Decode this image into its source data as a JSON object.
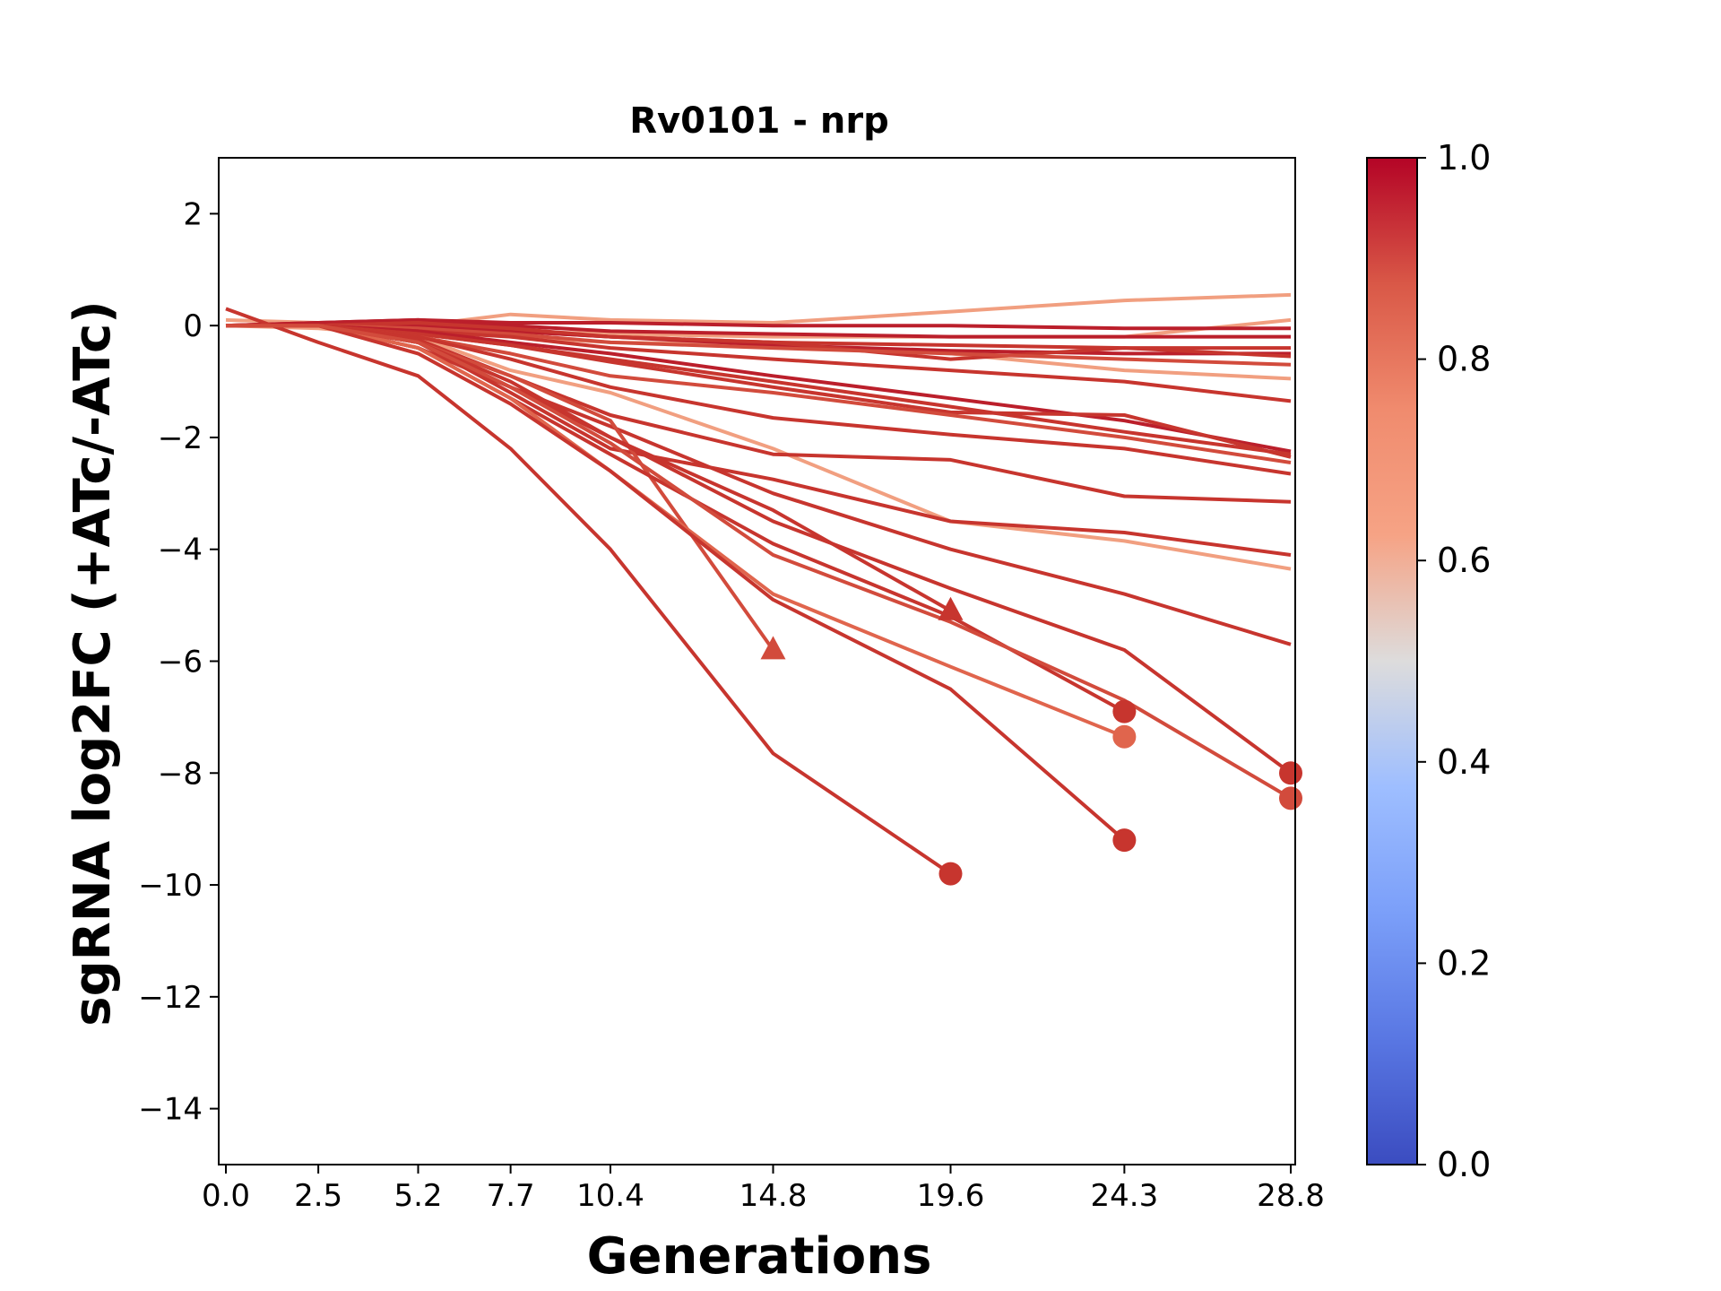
{
  "chart_data": {
    "type": "line",
    "title": "Rv0101 - nrp",
    "xlabel": "Generations",
    "ylabel": "sgRNA log2FC (+ATc/-ATc)",
    "x_ticks": [
      0.0,
      2.5,
      5.2,
      7.7,
      10.4,
      14.8,
      19.6,
      24.3,
      28.8
    ],
    "x_tick_labels": [
      "0.0",
      "2.5",
      "5.2",
      "7.7",
      "10.4",
      "14.8",
      "19.6",
      "24.3",
      "28.8"
    ],
    "xlim": [
      -0.2,
      29.0
    ],
    "y_ticks": [
      2,
      0,
      -2,
      -4,
      -6,
      -8,
      -10,
      -12,
      -14
    ],
    "y_tick_labels": [
      "2",
      "0",
      "−2",
      "−4",
      "−6",
      "−8",
      "−10",
      "−12",
      "−14"
    ],
    "ylim": [
      -15,
      3
    ],
    "grid": false,
    "colorbar": {
      "colormap": "coolwarm",
      "range": [
        0.0,
        1.0
      ],
      "ticks": [
        0.0,
        0.2,
        0.4,
        0.6,
        0.8,
        1.0
      ],
      "tick_labels": [
        "0.0",
        "0.2",
        "0.4",
        "0.6",
        "0.8",
        "1.0"
      ]
    },
    "series": [
      {
        "color": "#f19f80",
        "x": [
          0.0,
          2.5,
          5.2,
          7.7,
          10.4,
          14.8,
          19.6,
          24.3,
          28.8
        ],
        "y": [
          0.0,
          0.05,
          0.0,
          0.2,
          0.1,
          0.05,
          0.25,
          0.45,
          0.55
        ]
      },
      {
        "color": "#f19f80",
        "x": [
          0.0,
          2.5,
          5.2,
          7.7,
          10.4,
          14.8,
          19.6,
          24.3,
          28.8
        ],
        "y": [
          0.1,
          0.05,
          0.0,
          -0.1,
          -0.15,
          -0.2,
          -0.2,
          -0.2,
          0.1
        ]
      },
      {
        "color": "#f19f80",
        "x": [
          0.0,
          2.5,
          5.2,
          7.7,
          10.4,
          14.8,
          19.6,
          24.3,
          28.8
        ],
        "y": [
          0.0,
          0.0,
          -0.1,
          -0.2,
          -0.3,
          -0.35,
          -0.5,
          -0.8,
          -0.95
        ]
      },
      {
        "color": "#f19f80",
        "x": [
          0.0,
          2.5,
          5.2,
          7.7,
          10.4,
          14.8,
          19.6,
          24.3,
          28.8
        ],
        "y": [
          0.0,
          -0.05,
          -0.2,
          -0.8,
          -1.2,
          -2.2,
          -3.5,
          -3.85,
          -4.35
        ]
      },
      {
        "color": "#bb1f2b",
        "x": [
          0.0,
          2.5,
          5.2,
          7.7,
          10.4,
          14.8,
          19.6,
          24.3,
          28.8
        ],
        "y": [
          0.0,
          0.05,
          0.1,
          0.05,
          0.05,
          0.0,
          0.0,
          -0.05,
          -0.05
        ]
      },
      {
        "color": "#bb1f2b",
        "x": [
          0.0,
          2.5,
          5.2,
          7.7,
          10.4,
          14.8,
          19.6,
          24.3,
          28.8
        ],
        "y": [
          0.0,
          0.05,
          0.1,
          0.0,
          -0.1,
          -0.15,
          -0.2,
          -0.2,
          -0.2
        ]
      },
      {
        "color": "#c7352e",
        "x": [
          0.0,
          2.5,
          5.2,
          7.7,
          10.4,
          14.8,
          19.6,
          24.3,
          28.8
        ],
        "y": [
          0.0,
          0.0,
          0.05,
          -0.1,
          -0.2,
          -0.3,
          -0.35,
          -0.4,
          -0.4
        ]
      },
      {
        "color": "#bb1f2b",
        "x": [
          0.0,
          2.5,
          5.2,
          7.7,
          10.4,
          14.8,
          19.6,
          24.3,
          28.8
        ],
        "y": [
          0.0,
          0.0,
          0.0,
          -0.1,
          -0.2,
          -0.35,
          -0.45,
          -0.5,
          -0.5
        ]
      },
      {
        "color": "#c7352e",
        "x": [
          0.0,
          2.5,
          5.2,
          7.7,
          10.4,
          14.8,
          19.6,
          24.3,
          28.8
        ],
        "y": [
          0.0,
          0.0,
          0.05,
          -0.05,
          -0.2,
          -0.3,
          -0.6,
          -0.4,
          -0.55
        ]
      },
      {
        "color": "#d24b3c",
        "x": [
          0.0,
          2.5,
          5.2,
          7.7,
          10.4,
          14.8,
          19.6,
          24.3,
          28.8
        ],
        "y": [
          0.0,
          0.0,
          -0.05,
          -0.15,
          -0.3,
          -0.4,
          -0.5,
          -0.6,
          -0.7
        ]
      },
      {
        "color": "#c7352e",
        "x": [
          0.0,
          2.5,
          5.2,
          7.7,
          10.4,
          14.8,
          19.6,
          24.3,
          28.8
        ],
        "y": [
          0.0,
          0.0,
          -0.1,
          -0.2,
          -0.4,
          -0.6,
          -0.8,
          -1.0,
          -1.35
        ]
      },
      {
        "color": "#bb1f2b",
        "x": [
          0.0,
          2.5,
          5.2,
          7.7,
          10.4,
          14.8,
          19.6,
          24.3,
          28.8
        ],
        "y": [
          0.0,
          0.0,
          -0.1,
          -0.3,
          -0.5,
          -0.9,
          -1.3,
          -1.7,
          -2.25
        ]
      },
      {
        "color": "#c7352e",
        "x": [
          0.0,
          2.5,
          5.2,
          7.7,
          10.4,
          14.8,
          19.6,
          24.3,
          28.8
        ],
        "y": [
          0.0,
          0.0,
          -0.15,
          -0.35,
          -0.6,
          -1.0,
          -1.45,
          -1.9,
          -2.3
        ]
      },
      {
        "color": "#c7352e",
        "x": [
          0.0,
          2.5,
          5.2,
          7.7,
          10.4,
          14.8,
          19.6,
          24.3,
          28.8
        ],
        "y": [
          0.0,
          0.0,
          -0.15,
          -0.35,
          -0.65,
          -1.1,
          -1.55,
          -1.6,
          -2.35
        ]
      },
      {
        "color": "#d24b3c",
        "x": [
          0.0,
          2.5,
          5.2,
          7.7,
          10.4,
          14.8,
          19.6,
          24.3,
          28.8
        ],
        "y": [
          0.0,
          0.0,
          -0.2,
          -0.5,
          -0.9,
          -1.2,
          -1.6,
          -2.0,
          -2.45
        ]
      },
      {
        "color": "#c7352e",
        "x": [
          0.0,
          2.5,
          5.2,
          7.7,
          10.4,
          14.8,
          19.6,
          24.3,
          28.8
        ],
        "y": [
          0.0,
          0.0,
          -0.2,
          -0.6,
          -1.1,
          -1.65,
          -1.95,
          -2.2,
          -2.65
        ]
      },
      {
        "color": "#c7352e",
        "x": [
          0.0,
          2.5,
          5.2,
          7.7,
          10.4,
          14.8,
          19.6,
          24.3,
          28.8
        ],
        "y": [
          0.0,
          0.0,
          -0.25,
          -0.9,
          -1.6,
          -2.3,
          -2.4,
          -3.05,
          -3.15
        ]
      },
      {
        "color": "#c7352e",
        "x": [
          0.0,
          2.5,
          5.2,
          7.7,
          10.4,
          14.8,
          19.6,
          24.3,
          28.8
        ],
        "y": [
          0.0,
          0.0,
          -0.3,
          -1.2,
          -2.2,
          -2.75,
          -3.5,
          -3.7,
          -4.1
        ]
      },
      {
        "color": "#c7352e",
        "x": [
          0.0,
          2.5,
          5.2,
          7.7,
          10.4,
          14.8,
          19.6,
          24.3,
          28.8
        ],
        "y": [
          0.0,
          0.0,
          -0.3,
          -1.1,
          -1.8,
          -3.0,
          -4.0,
          -4.8,
          -5.7
        ]
      },
      {
        "color": "#d24b3c",
        "x": [
          0.0,
          2.5,
          5.2,
          7.7,
          10.4,
          14.8
        ],
        "y": [
          0.0,
          0.0,
          -0.3,
          -0.9,
          -1.7,
          -5.8
        ],
        "marker": "triangle"
      },
      {
        "color": "#c7352e",
        "x": [
          0.0,
          2.5,
          5.2,
          7.7,
          10.4,
          14.8,
          19.6
        ],
        "y": [
          0.0,
          0.0,
          -0.4,
          -1.1,
          -2.0,
          -3.3,
          -5.1
        ],
        "marker": "triangle"
      },
      {
        "color": "#c7352e",
        "x": [
          0.0,
          2.5,
          5.2,
          7.7,
          10.4,
          14.8,
          19.6,
          24.3
        ],
        "y": [
          0.0,
          0.0,
          -0.4,
          -1.3,
          -2.3,
          -3.9,
          -5.2,
          -6.9
        ],
        "marker": "circle"
      },
      {
        "color": "#e0654d",
        "x": [
          0.0,
          2.5,
          5.2,
          7.7,
          10.4,
          14.8,
          19.6,
          24.3
        ],
        "y": [
          0.0,
          0.0,
          -0.4,
          -1.3,
          -2.6,
          -4.8,
          -6.1,
          -7.35
        ],
        "marker": "circle"
      },
      {
        "color": "#c7352e",
        "x": [
          0.0,
          2.5,
          5.2,
          7.7,
          10.4,
          14.8,
          19.6,
          24.3
        ],
        "y": [
          0.0,
          0.0,
          -0.5,
          -1.4,
          -2.6,
          -4.9,
          -6.5,
          -9.2
        ],
        "marker": "circle"
      },
      {
        "color": "#c7352e",
        "x": [
          0.0,
          2.5,
          5.2,
          7.7,
          10.4,
          14.8,
          19.6
        ],
        "y": [
          0.3,
          -0.3,
          -0.9,
          -2.2,
          -4.0,
          -7.65,
          -9.8
        ],
        "marker": "circle"
      },
      {
        "color": "#c7352e",
        "x": [
          0.0,
          2.5,
          5.2,
          7.7,
          10.4,
          14.8,
          19.6,
          24.3,
          28.8
        ],
        "y": [
          0.0,
          0.0,
          -0.3,
          -1.0,
          -2.0,
          -3.5,
          -4.7,
          -5.8,
          -8.0
        ],
        "marker": "circle"
      },
      {
        "color": "#d24b3c",
        "x": [
          0.0,
          2.5,
          5.2,
          7.7,
          10.4,
          14.8,
          19.6,
          24.3,
          28.8
        ],
        "y": [
          0.0,
          0.0,
          -0.3,
          -1.1,
          -2.1,
          -4.1,
          -5.3,
          -6.7,
          -8.45
        ],
        "marker": "circle"
      }
    ]
  }
}
